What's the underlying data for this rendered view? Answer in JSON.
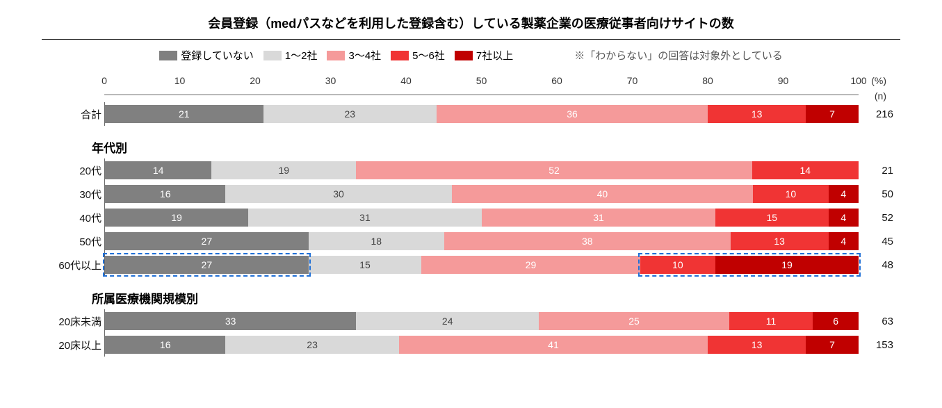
{
  "title": "会員登録（medパスなどを利用した登録含む）している製薬企業の医療従事者向けサイトの数",
  "note": "※「わからない」の回答は対象外としている",
  "axis": {
    "ticks": [
      0,
      10,
      20,
      30,
      40,
      50,
      60,
      70,
      80,
      90,
      100
    ],
    "unit_label": "(%)",
    "n_label": "(n)"
  },
  "colors": {
    "none": "#808080",
    "c1_2": "#d9d9d9",
    "c3_4": "#f59a9a",
    "c5_6": "#f03434",
    "c7p": "#c00000",
    "highlight": "#1f6fd6"
  },
  "legend": [
    {
      "label": "登録していない",
      "color_key": "none"
    },
    {
      "label": "1～2社",
      "color_key": "c1_2"
    },
    {
      "label": "3～4社",
      "color_key": "c3_4"
    },
    {
      "label": "5～6社",
      "color_key": "c5_6"
    },
    {
      "label": "7社以上",
      "color_key": "c7p"
    }
  ],
  "groups": [
    {
      "header": null,
      "rows": [
        {
          "label": "合計",
          "n": 216,
          "values": [
            21,
            23,
            36,
            13,
            7
          ]
        }
      ]
    },
    {
      "header": "年代別",
      "rows": [
        {
          "label": "20代",
          "n": 21,
          "values": [
            14,
            19,
            52,
            14,
            0
          ]
        },
        {
          "label": "30代",
          "n": 50,
          "values": [
            16,
            30,
            40,
            10,
            4
          ]
        },
        {
          "label": "40代",
          "n": 52,
          "values": [
            19,
            31,
            31,
            15,
            4
          ]
        },
        {
          "label": "50代",
          "n": 45,
          "values": [
            27,
            18,
            38,
            13,
            4
          ]
        },
        {
          "label": "60代以上",
          "n": 48,
          "values": [
            27,
            15,
            29,
            10,
            19
          ],
          "highlights": [
            {
              "from_seg": 0,
              "to_seg": 0
            },
            {
              "from_seg": 3,
              "to_seg": 4
            }
          ]
        }
      ]
    },
    {
      "header": "所属医療機関規模別",
      "rows": [
        {
          "label": "20床未満",
          "n": 63,
          "values": [
            33,
            24,
            25,
            11,
            6
          ]
        },
        {
          "label": "20床以上",
          "n": 153,
          "values": [
            16,
            23,
            41,
            13,
            7
          ]
        }
      ]
    }
  ],
  "series_color_keys": [
    "none",
    "c1_2",
    "c3_4",
    "c5_6",
    "c7p"
  ],
  "series_text_dark": [
    false,
    true,
    false,
    false,
    false
  ]
}
